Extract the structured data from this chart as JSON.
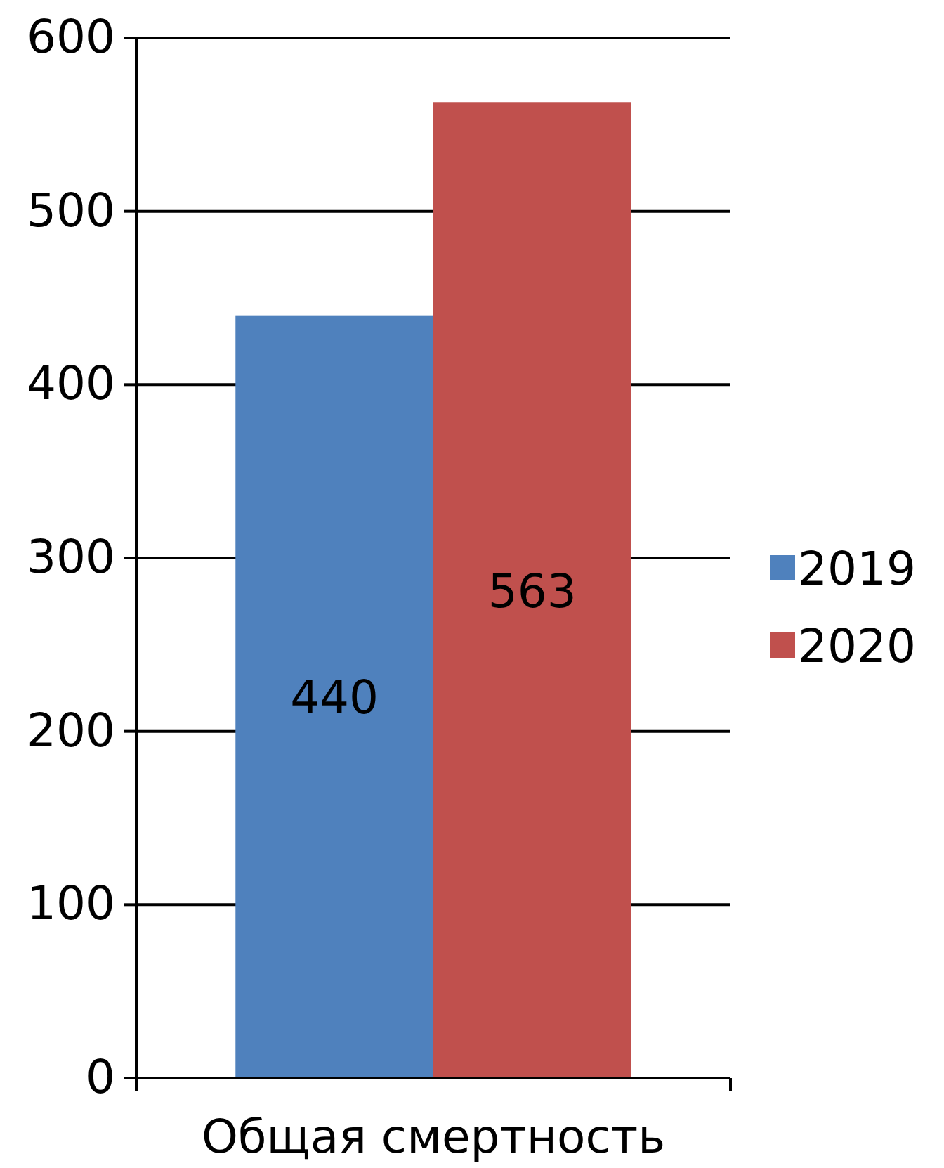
{
  "chart_data": {
    "type": "bar",
    "categories": [
      "Общая смертность"
    ],
    "series": [
      {
        "name": "2019",
        "color": "#4f81bd",
        "values": [
          440
        ]
      },
      {
        "name": "2020",
        "color": "#c0504d",
        "values": [
          563
        ]
      }
    ],
    "ylim": [
      0,
      600
    ],
    "yticks": [
      0,
      100,
      200,
      300,
      400,
      500,
      600
    ],
    "grid": "y",
    "legend": "right",
    "data_labels": true
  }
}
